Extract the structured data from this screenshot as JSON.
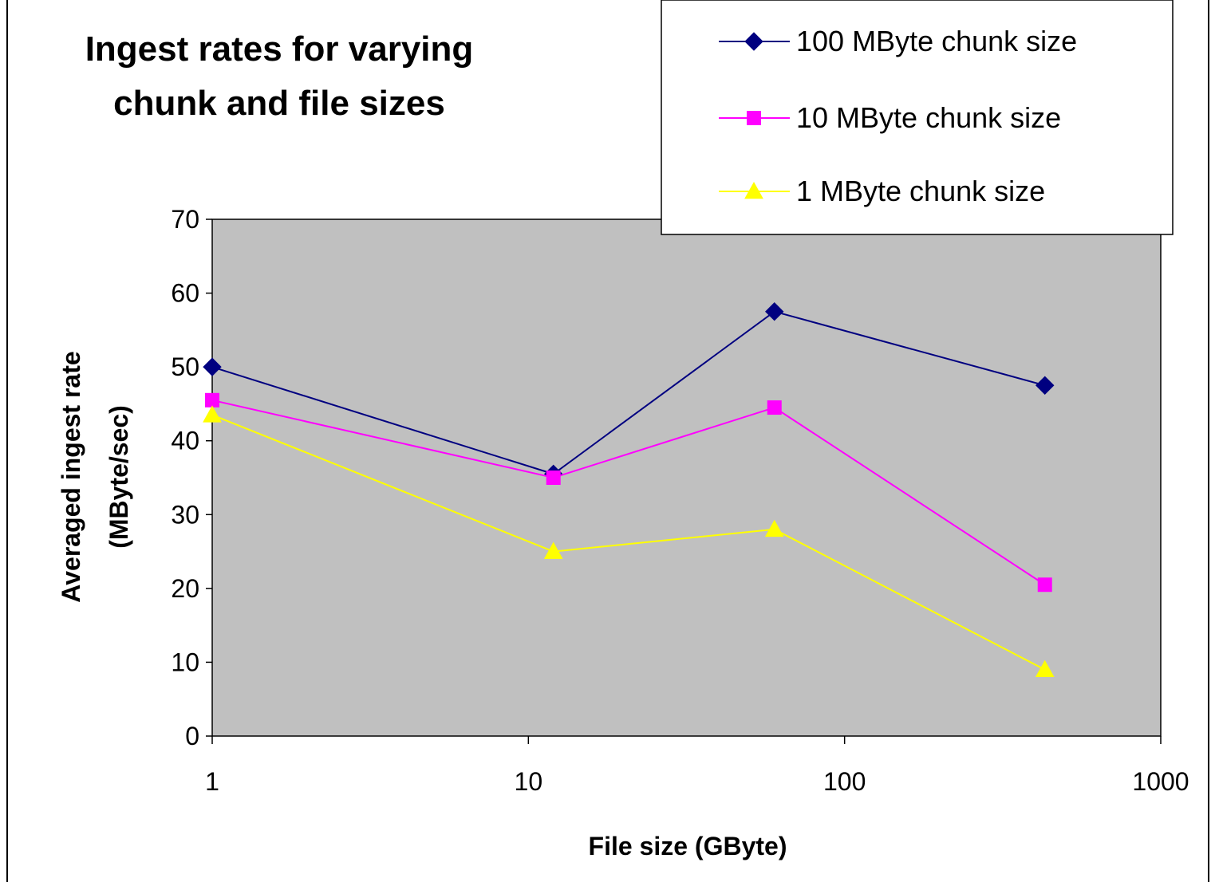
{
  "chart_data": {
    "type": "line",
    "title_lines": [
      "Ingest rates for varying",
      "chunk and file sizes"
    ],
    "xlabel": "File size (GByte)",
    "ylabel_lines": [
      "Averaged ingest rate",
      "(MByte/sec)"
    ],
    "x_scale": "log",
    "xlim": [
      1,
      1000
    ],
    "ylim": [
      0,
      70
    ],
    "x_ticks": [
      1,
      10,
      100,
      1000
    ],
    "x_tick_labels": [
      "1",
      "10",
      "100",
      "1000"
    ],
    "y_ticks": [
      0,
      10,
      20,
      30,
      40,
      50,
      60,
      70
    ],
    "y_tick_labels": [
      "0",
      "10",
      "20",
      "30",
      "40",
      "50",
      "60",
      "70"
    ],
    "grid": false,
    "plot_background": "#c0c0c0",
    "legend_position": "top-right",
    "x": [
      1,
      12,
      60,
      430
    ],
    "series": [
      {
        "name": "100 MByte chunk size",
        "color": "#000080",
        "marker": "diamond",
        "values": [
          50,
          35.5,
          57.5,
          47.5
        ]
      },
      {
        "name": "10 MByte chunk size",
        "color": "#ff00ff",
        "marker": "square",
        "values": [
          45.5,
          35,
          44.5,
          20.5
        ]
      },
      {
        "name": "1 MByte chunk size",
        "color": "#ffff00",
        "marker": "triangle",
        "values": [
          43.5,
          25,
          28,
          9
        ]
      }
    ]
  }
}
